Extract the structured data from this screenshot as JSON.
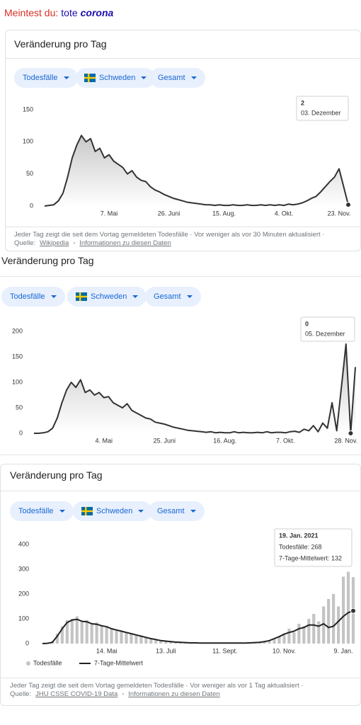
{
  "header": {
    "prefix": "Meintest du:",
    "words": [
      "tote",
      "corona"
    ]
  },
  "chart_data": [
    {
      "type": "area",
      "title": "Veränderung pro Tag",
      "filters": [
        "Todesfälle",
        "Schweden",
        "Gesamt"
      ],
      "categories": [
        null,
        null,
        null,
        null,
        null,
        null,
        null,
        null,
        null,
        null,
        null,
        null,
        null,
        null,
        "7. Mai",
        null,
        null,
        null,
        null,
        null,
        null,
        null,
        null,
        null,
        null,
        null,
        null,
        "26. Juni",
        null,
        null,
        null,
        null,
        null,
        null,
        null,
        null,
        null,
        null,
        null,
        "15. Aug.",
        null,
        null,
        null,
        null,
        null,
        null,
        null,
        null,
        null,
        null,
        null,
        null,
        "4. Okt.",
        null,
        null,
        null,
        null,
        null,
        null,
        null,
        null,
        null,
        null,
        null,
        "23. Nov.",
        null,
        null
      ],
      "values": [
        0,
        1,
        2,
        8,
        20,
        45,
        75,
        95,
        110,
        100,
        105,
        85,
        90,
        75,
        80,
        70,
        65,
        60,
        50,
        55,
        45,
        40,
        38,
        30,
        25,
        22,
        18,
        15,
        12,
        10,
        8,
        6,
        5,
        4,
        3,
        2,
        2,
        1,
        2,
        1,
        1,
        2,
        1,
        1,
        2,
        1,
        1,
        2,
        1,
        2,
        1,
        2,
        1,
        3,
        2,
        3,
        5,
        8,
        12,
        15,
        22,
        30,
        38,
        45,
        58,
        30,
        2
      ],
      "color": "#333333",
      "ylim": [
        0,
        150
      ],
      "yticks": [
        0,
        50,
        100,
        150
      ],
      "grid": false,
      "tooltip": {
        "value": 2,
        "title": "03. Dezember"
      },
      "note": "Jeder Tag zeigt die seit dem Vortag gemeldeten Todesfälle · Vor weniger als vor 30 Minuten aktualisiert ·",
      "source_label": "Quelle:",
      "source": "Wikipedia",
      "info": "Informationen zu diesen Daten"
    },
    {
      "type": "area",
      "title": "Veränderung pro Tag",
      "filters": [
        "Todesfälle",
        "Schweden",
        "Gesamt"
      ],
      "categories": [
        null,
        null,
        null,
        null,
        null,
        null,
        null,
        null,
        null,
        null,
        null,
        null,
        null,
        null,
        null,
        "4. Mai",
        null,
        null,
        null,
        null,
        null,
        null,
        null,
        null,
        null,
        null,
        null,
        null,
        "25. Juni",
        null,
        null,
        null,
        null,
        null,
        null,
        null,
        null,
        null,
        null,
        null,
        null,
        "16. Aug.",
        null,
        null,
        null,
        null,
        null,
        null,
        null,
        null,
        null,
        null,
        null,
        null,
        "7. Okt.",
        null,
        null,
        null,
        null,
        null,
        null,
        null,
        null,
        null,
        null,
        null,
        null,
        "28. Nov.",
        null,
        null
      ],
      "values": [
        0,
        0,
        1,
        3,
        10,
        30,
        60,
        85,
        100,
        90,
        105,
        80,
        85,
        75,
        80,
        70,
        72,
        60,
        55,
        50,
        58,
        45,
        40,
        35,
        30,
        28,
        22,
        20,
        18,
        15,
        12,
        10,
        8,
        6,
        5,
        4,
        3,
        2,
        3,
        1,
        2,
        1,
        1,
        3,
        1,
        2,
        1,
        1,
        2,
        1,
        3,
        1,
        2,
        2,
        1,
        3,
        4,
        2,
        8,
        5,
        15,
        3,
        20,
        10,
        60,
        5,
        90,
        175,
        0,
        130
      ],
      "color": "#333333",
      "ylim": [
        0,
        200
      ],
      "yticks": [
        0,
        50,
        100,
        150,
        200
      ],
      "grid": false,
      "tooltip": {
        "value": 0,
        "title": "05. Dezember"
      }
    },
    {
      "type": "combo",
      "title": "Veränderung pro Tag",
      "filters": [
        "Todesfälle",
        "Schweden",
        "Gesamt"
      ],
      "categories": [
        null,
        null,
        null,
        null,
        null,
        null,
        null,
        null,
        null,
        null,
        null,
        null,
        null,
        "14. Mai",
        null,
        null,
        null,
        null,
        null,
        null,
        null,
        null,
        null,
        null,
        null,
        "13. Juli",
        null,
        null,
        null,
        null,
        null,
        null,
        null,
        null,
        null,
        null,
        null,
        "11. Sept.",
        null,
        null,
        null,
        null,
        null,
        null,
        null,
        null,
        null,
        null,
        null,
        "10. Nov.",
        null,
        null,
        null,
        null,
        null,
        null,
        null,
        null,
        null,
        null,
        null,
        "9. Jan.",
        null,
        null
      ],
      "series": [
        {
          "name": "Todesfälle",
          "type": "bar",
          "color": "#c4c4c4",
          "values": [
            0,
            2,
            10,
            40,
            70,
            95,
            100,
            110,
            90,
            95,
            80,
            85,
            75,
            70,
            60,
            55,
            50,
            45,
            40,
            35,
            30,
            25,
            20,
            15,
            12,
            10,
            8,
            6,
            5,
            4,
            3,
            3,
            2,
            2,
            2,
            1,
            2,
            1,
            2,
            1,
            2,
            3,
            2,
            3,
            5,
            8,
            10,
            20,
            30,
            40,
            60,
            45,
            80,
            70,
            100,
            120,
            90,
            150,
            180,
            200,
            150,
            270,
            290,
            268
          ]
        },
        {
          "name": "7-Tage-Mittelwert",
          "type": "line",
          "color": "#222222",
          "values": [
            0,
            1,
            5,
            30,
            60,
            85,
            95,
            98,
            90,
            88,
            80,
            78,
            72,
            68,
            60,
            55,
            50,
            45,
            40,
            35,
            30,
            25,
            20,
            16,
            12,
            10,
            8,
            6,
            5,
            4,
            3,
            3,
            2,
            2,
            2,
            2,
            2,
            2,
            2,
            2,
            2,
            2,
            3,
            4,
            5,
            8,
            12,
            20,
            28,
            38,
            45,
            50,
            60,
            65,
            75,
            75,
            70,
            80,
            65,
            70,
            90,
            110,
            125,
            132
          ]
        }
      ],
      "ylim": [
        0,
        400
      ],
      "yticks": [
        0,
        100,
        200,
        300,
        400
      ],
      "grid": false,
      "tooltip": {
        "title": "19. Jan. 2021",
        "lines": [
          "Todesfälle: 268",
          "7-Tage-Mittelwert: 132"
        ]
      },
      "note": "Jeder Tag zeigt die seit dem Vortag gemeldeten Todesfälle · Vor weniger als vor 1 Tag aktualisiert ·",
      "source_label": "Quelle:",
      "source": "JHU CSSE COVID-19 Data",
      "info": "Informationen zu diesen Daten"
    }
  ]
}
